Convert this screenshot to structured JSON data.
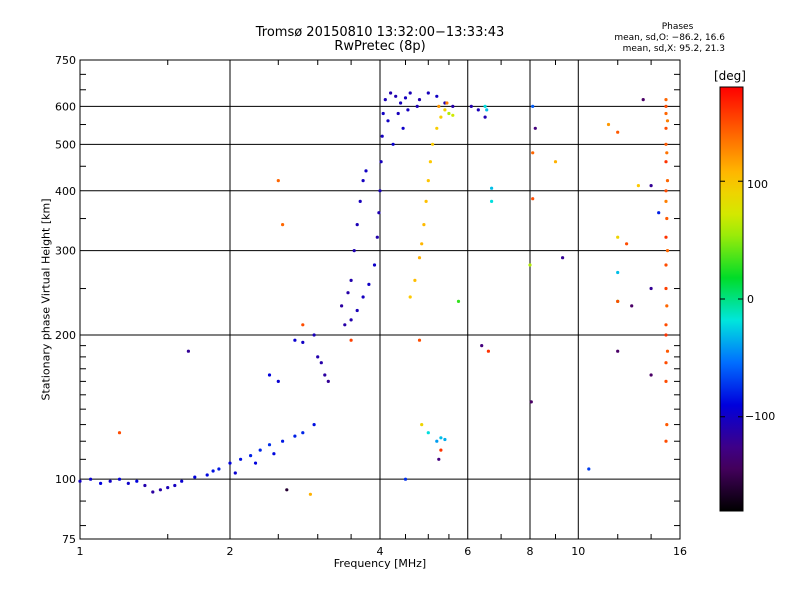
{
  "header": {
    "title": "Tromsø 20150810 13:32:00−13:33:43",
    "subtitle": "RwPretec (8p)"
  },
  "phases": {
    "heading": "Phases",
    "line_o": "mean, sd,O: −86.2, 16.6",
    "line_x": "mean, sd,X:  95.2, 21.3"
  },
  "colorbar": {
    "unit": "[deg]",
    "ticks": [
      {
        "value": 100,
        "label": "100"
      },
      {
        "value": 0,
        "label": "0"
      },
      {
        "value": -100,
        "label": "−100"
      }
    ],
    "range": [
      -180,
      180
    ]
  },
  "chart_data": {
    "type": "scatter",
    "title": "Tromsø 20150810 13:32:00−13:33:43",
    "subtitle": "RwPretec (8p)",
    "xlabel": "Frequency [MHz]",
    "ylabel": "Stationary phase Virtual Height [km]",
    "x_scale": "log",
    "y_scale": "log",
    "xlim": [
      1,
      16
    ],
    "ylim": [
      75,
      750
    ],
    "grid": true,
    "x_ticks": [
      {
        "value": 1,
        "label": "1"
      },
      {
        "value": 2,
        "label": "2"
      },
      {
        "value": 4,
        "label": "4"
      },
      {
        "value": 6,
        "label": "6"
      },
      {
        "value": 8,
        "label": "8"
      },
      {
        "value": 10,
        "label": "10"
      },
      {
        "value": 16,
        "label": "16"
      }
    ],
    "y_ticks": [
      {
        "value": 75,
        "label": "75"
      },
      {
        "value": 100,
        "label": "100"
      },
      {
        "value": 200,
        "label": "200"
      },
      {
        "value": 300,
        "label": "300"
      },
      {
        "value": 400,
        "label": "400"
      },
      {
        "value": 500,
        "label": "500"
      },
      {
        "value": 600,
        "label": "600"
      },
      {
        "value": 750,
        "label": "750"
      }
    ],
    "color_unit": "[deg]",
    "series": [
      {
        "points": [
          [
            1.0,
            99,
            -100
          ],
          [
            1.05,
            100,
            -95
          ],
          [
            1.1,
            98,
            -90
          ],
          [
            1.15,
            99,
            -100
          ],
          [
            1.2,
            100,
            -92
          ],
          [
            1.25,
            98,
            -98
          ],
          [
            1.3,
            99,
            -90
          ],
          [
            1.35,
            97,
            -110
          ],
          [
            1.4,
            94,
            -115
          ],
          [
            1.45,
            95,
            -112
          ],
          [
            1.5,
            96,
            -105
          ],
          [
            1.55,
            97,
            -102
          ],
          [
            1.6,
            99,
            -95
          ],
          [
            1.7,
            101,
            -90
          ],
          [
            1.8,
            102,
            -88
          ],
          [
            1.85,
            104,
            -85
          ],
          [
            1.9,
            105,
            -82
          ],
          [
            2.0,
            108,
            -90
          ],
          [
            2.1,
            110,
            -85
          ],
          [
            2.2,
            112,
            -80
          ],
          [
            2.3,
            115,
            -78
          ],
          [
            2.4,
            118,
            -75
          ],
          [
            2.55,
            120,
            -82
          ],
          [
            2.7,
            123,
            -80
          ],
          [
            2.8,
            125,
            -78
          ],
          [
            2.95,
            130,
            -85
          ],
          [
            2.05,
            103,
            -95
          ],
          [
            2.25,
            108,
            -90
          ],
          [
            2.45,
            113,
            -88
          ]
        ]
      },
      {
        "points": [
          [
            2.4,
            165,
            -90
          ],
          [
            2.5,
            160,
            -95
          ],
          [
            2.7,
            195,
            -95
          ],
          [
            2.8,
            193,
            -100
          ],
          [
            2.95,
            200,
            -105
          ],
          [
            3.0,
            180,
            -110
          ],
          [
            3.05,
            175,
            -112
          ],
          [
            3.1,
            165,
            -115
          ],
          [
            3.15,
            160,
            -120
          ],
          [
            3.4,
            210,
            -112
          ],
          [
            3.5,
            215,
            -110
          ],
          [
            3.6,
            225,
            -105
          ],
          [
            3.7,
            240,
            -102
          ],
          [
            3.8,
            255,
            -100
          ],
          [
            3.9,
            280,
            -98
          ],
          [
            3.5,
            260,
            -110
          ],
          [
            3.55,
            300,
            -108
          ],
          [
            3.6,
            340,
            -106
          ],
          [
            3.65,
            380,
            -104
          ],
          [
            3.7,
            420,
            -102
          ],
          [
            3.75,
            440,
            -100
          ],
          [
            3.35,
            230,
            -115
          ],
          [
            3.45,
            245,
            -112
          ]
        ]
      },
      {
        "points": [
          [
            3.95,
            320,
            -110
          ],
          [
            3.98,
            360,
            -108
          ],
          [
            4.0,
            400,
            -105
          ],
          [
            4.02,
            460,
            -103
          ],
          [
            4.04,
            520,
            -102
          ],
          [
            4.06,
            580,
            -100
          ],
          [
            4.1,
            620,
            -105
          ],
          [
            4.2,
            640,
            -110
          ],
          [
            4.3,
            630,
            -108
          ],
          [
            4.4,
            610,
            -104
          ],
          [
            4.5,
            625,
            -102
          ],
          [
            4.6,
            640,
            -106
          ],
          [
            4.8,
            620,
            -110
          ],
          [
            5.0,
            640,
            -104
          ],
          [
            5.2,
            630,
            -100
          ],
          [
            5.4,
            610,
            -108
          ],
          [
            5.6,
            600,
            -112
          ],
          [
            4.15,
            560,
            -100
          ],
          [
            4.35,
            580,
            -104
          ],
          [
            4.55,
            590,
            -102
          ],
          [
            4.75,
            600,
            -106
          ],
          [
            6.1,
            600,
            -110
          ],
          [
            6.3,
            590,
            -105
          ],
          [
            6.5,
            570,
            -108
          ],
          [
            4.25,
            500,
            -96
          ],
          [
            4.45,
            540,
            -98
          ]
        ]
      },
      {
        "points": [
          [
            4.6,
            240,
            100
          ],
          [
            4.7,
            260,
            105
          ],
          [
            4.8,
            290,
            110
          ],
          [
            4.85,
            310,
            108
          ],
          [
            4.9,
            340,
            106
          ],
          [
            4.95,
            380,
            104
          ],
          [
            5.0,
            420,
            102
          ],
          [
            5.05,
            460,
            100
          ],
          [
            5.1,
            500,
            98
          ],
          [
            5.2,
            540,
            96
          ],
          [
            5.3,
            570,
            95
          ],
          [
            5.4,
            590,
            93
          ],
          [
            5.5,
            580,
            60
          ],
          [
            5.6,
            575,
            70
          ],
          [
            5.25,
            600,
            120
          ],
          [
            5.45,
            610,
            130
          ]
        ]
      },
      {
        "points": [
          [
            1.65,
            185,
            -120
          ],
          [
            1.2,
            125,
            150
          ],
          [
            2.5,
            420,
            140
          ],
          [
            2.55,
            340,
            140
          ],
          [
            2.6,
            95,
            -160
          ],
          [
            2.8,
            210,
            150
          ],
          [
            2.9,
            93,
            110
          ],
          [
            3.5,
            195,
            155
          ],
          [
            4.5,
            100,
            -75
          ],
          [
            4.8,
            195,
            150
          ],
          [
            4.85,
            130,
            90
          ],
          [
            5.0,
            125,
            -20
          ],
          [
            5.2,
            120,
            -40
          ],
          [
            5.3,
            122,
            -30
          ],
          [
            5.4,
            121,
            -35
          ],
          [
            5.25,
            110,
            -130
          ],
          [
            5.3,
            115,
            160
          ],
          [
            5.75,
            235,
            30
          ],
          [
            6.4,
            190,
            -130
          ],
          [
            6.6,
            185,
            160
          ],
          [
            6.7,
            405,
            -30
          ],
          [
            6.7,
            380,
            -20
          ],
          [
            6.55,
            590,
            -30
          ],
          [
            6.5,
            600,
            -20
          ],
          [
            8.0,
            280,
            60
          ],
          [
            8.1,
            600,
            -60
          ],
          [
            8.2,
            540,
            -130
          ],
          [
            8.1,
            480,
            140
          ],
          [
            8.1,
            385,
            150
          ],
          [
            8.05,
            145,
            -140
          ],
          [
            9.0,
            460,
            110
          ],
          [
            9.3,
            290,
            -120
          ],
          [
            10.5,
            105,
            -70
          ],
          [
            11.5,
            550,
            120
          ],
          [
            12.0,
            530,
            145
          ],
          [
            12.0,
            320,
            90
          ],
          [
            12.0,
            270,
            -30
          ],
          [
            12.0,
            235,
            30
          ],
          [
            12.0,
            185,
            -140
          ],
          [
            12.0,
            235,
            150
          ],
          [
            12.5,
            310,
            150
          ],
          [
            12.8,
            230,
            -140
          ],
          [
            13.2,
            410,
            100
          ],
          [
            13.5,
            620,
            -140
          ],
          [
            14.0,
            165,
            -140
          ],
          [
            14.0,
            250,
            -120
          ],
          [
            14.0,
            410,
            -120
          ],
          [
            14.5,
            360,
            -80
          ]
        ]
      },
      {
        "points": [
          [
            15.0,
            620,
            140
          ],
          [
            15.0,
            600,
            150
          ],
          [
            15.0,
            580,
            140
          ],
          [
            15.1,
            560,
            130
          ],
          [
            15.0,
            540,
            150
          ],
          [
            15.0,
            500,
            145
          ],
          [
            15.05,
            480,
            135
          ],
          [
            15.0,
            460,
            160
          ],
          [
            15.1,
            420,
            140
          ],
          [
            15.0,
            400,
            150
          ],
          [
            15.0,
            380,
            130
          ],
          [
            15.05,
            350,
            145
          ],
          [
            15.0,
            320,
            160
          ],
          [
            15.1,
            300,
            140
          ],
          [
            15.0,
            280,
            150
          ],
          [
            15.0,
            250,
            155
          ],
          [
            15.05,
            230,
            140
          ],
          [
            15.0,
            210,
            150
          ],
          [
            15.0,
            200,
            160
          ],
          [
            15.1,
            185,
            145
          ],
          [
            15.0,
            175,
            150
          ],
          [
            15.0,
            160,
            150
          ],
          [
            15.05,
            130,
            145
          ],
          [
            15.0,
            120,
            150
          ]
        ]
      }
    ]
  }
}
